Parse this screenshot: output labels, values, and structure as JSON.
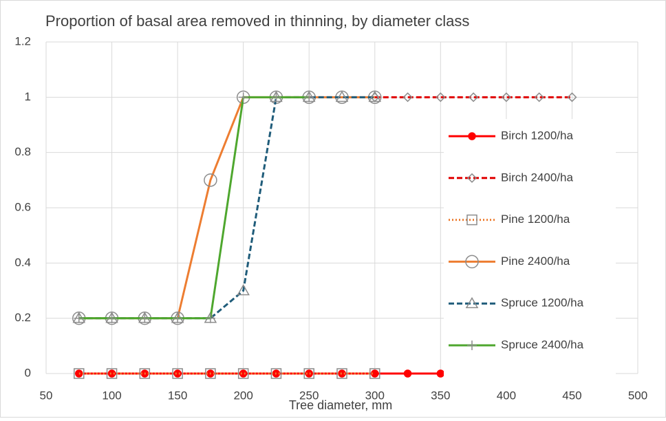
{
  "chart_data": {
    "type": "line",
    "title": "Proportion of basal area removed in thinning, by diameter class",
    "x_label": "Tree diameter, mm",
    "xlim": [
      50,
      500
    ],
    "xticks": [
      50,
      100,
      150,
      200,
      250,
      300,
      350,
      400,
      450,
      500
    ],
    "ylim": [
      0,
      1.2
    ],
    "yticks": [
      0,
      0.2,
      0.4,
      0.6,
      0.8,
      1,
      1.2
    ],
    "grid": true,
    "legend": "right",
    "marker_color": "#8c8c8c",
    "series": [
      {
        "name": "Birch 1200/ha",
        "color": "#ff0000",
        "line_style": "solid",
        "marker": "filled-circle",
        "x": [
          75,
          100,
          125,
          150,
          175,
          200,
          225,
          250,
          275,
          300,
          325,
          350
        ],
        "values": [
          0,
          0,
          0,
          0,
          0,
          0,
          0,
          0,
          0,
          0,
          0,
          0
        ]
      },
      {
        "name": "Birch 2400/ha",
        "color": "#e00000",
        "line_style": "dashed",
        "marker": "diamond",
        "x": [
          300,
          325,
          350,
          375,
          400,
          425,
          450
        ],
        "values": [
          1,
          1,
          1,
          1,
          1,
          1,
          1
        ]
      },
      {
        "name": "Pine 1200/ha",
        "color": "#ed7d31",
        "line_style": "dotted",
        "marker": "square",
        "x": [
          75,
          100,
          125,
          150,
          175,
          200,
          225,
          250,
          275,
          300
        ],
        "values": [
          0,
          0,
          0,
          0,
          0,
          0,
          0,
          0,
          0,
          0
        ]
      },
      {
        "name": "Pine 2400/ha",
        "color": "#ed7d31",
        "line_style": "solid",
        "marker": "circle",
        "x": [
          75,
          100,
          125,
          150,
          175,
          200,
          225,
          250,
          275,
          300
        ],
        "values": [
          0.2,
          0.2,
          0.2,
          0.2,
          0.7,
          1,
          1,
          1,
          1,
          1
        ]
      },
      {
        "name": "Spruce 1200/ha",
        "color": "#1f5c7a",
        "line_style": "dashed",
        "marker": "triangle",
        "x": [
          75,
          100,
          125,
          150,
          175,
          200,
          225,
          250,
          275,
          300
        ],
        "values": [
          0.2,
          0.2,
          0.2,
          0.2,
          0.2,
          0.3,
          1,
          1,
          1,
          1
        ]
      },
      {
        "name": "Spruce 2400/ha",
        "color": "#4ea72e",
        "line_style": "solid",
        "marker": "plus",
        "x": [
          75,
          100,
          125,
          150,
          175,
          200,
          225,
          250
        ],
        "values": [
          0.2,
          0.2,
          0.2,
          0.2,
          0.2,
          1,
          1,
          1
        ]
      }
    ]
  }
}
